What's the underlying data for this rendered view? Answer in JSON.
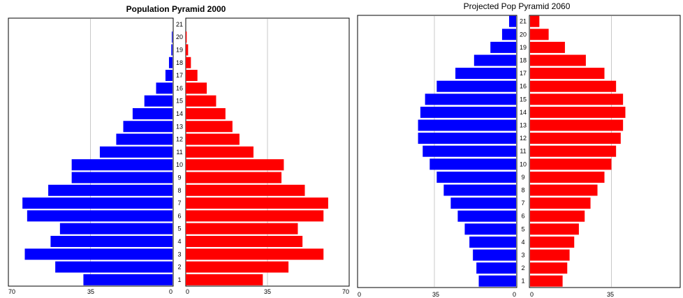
{
  "colors": {
    "male": "#0000ff",
    "female": "#ff0000",
    "grid": "#c8c8c8"
  },
  "chart_data": [
    {
      "type": "bar",
      "orientation": "horizontal-pyramid",
      "title": "Population Pyramid 2000",
      "title_bold": true,
      "categories": [
        "1",
        "2",
        "3",
        "4",
        "5",
        "6",
        "7",
        "8",
        "9",
        "10",
        "11",
        "12",
        "13",
        "14",
        "15",
        "16",
        "17",
        "18",
        "19",
        "20",
        "21"
      ],
      "series": [
        {
          "values": [
            38,
            50,
            63,
            52,
            48,
            62,
            64,
            53,
            43,
            43,
            31,
            24,
            21,
            17,
            12,
            7,
            3,
            1.5,
            0.5,
            0.3,
            0
          ]
        },
        {
          "values": [
            33,
            44,
            59,
            50,
            48,
            59,
            61,
            51,
            41,
            42,
            29,
            23,
            20,
            17,
            13,
            9,
            5,
            2.2,
            1,
            0.4,
            0
          ]
        }
      ],
      "xlim_left": [
        70,
        0
      ],
      "xlim_right": [
        0,
        70
      ],
      "left_ticks": [
        "70",
        "35",
        "0"
      ],
      "right_ticks": [
        "0",
        "35",
        "70"
      ],
      "grid": true
    },
    {
      "type": "bar",
      "orientation": "horizontal-pyramid",
      "title": "Projected Pop Pyramid 2060",
      "title_bold": false,
      "categories": [
        "1",
        "2",
        "3",
        "4",
        "5",
        "6",
        "7",
        "8",
        "9",
        "10",
        "11",
        "12",
        "13",
        "14",
        "15",
        "16",
        "17",
        "18",
        "19",
        "20",
        "21"
      ],
      "series": [
        {
          "values": [
            16,
            17,
            18.5,
            20,
            22,
            25,
            28,
            31,
            34,
            37,
            40,
            42,
            42,
            41,
            39,
            34,
            26,
            18,
            11,
            6,
            3
          ]
        },
        {
          "values": [
            14,
            16,
            17,
            19,
            21,
            23.5,
            26,
            29,
            32,
            35,
            37,
            39,
            40,
            41,
            40,
            37,
            32,
            24,
            15,
            8,
            4
          ]
        }
      ],
      "xlim_left": [
        70,
        0
      ],
      "xlim_right": [
        0,
        70
      ],
      "left_ticks": [
        "0",
        "35",
        "0"
      ],
      "right_ticks": [
        "0",
        "35"
      ],
      "grid": true
    }
  ]
}
